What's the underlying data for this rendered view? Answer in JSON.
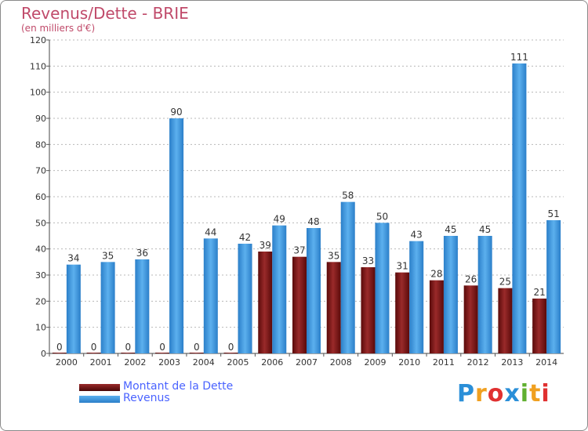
{
  "colors": {
    "dette": "#7a1010",
    "revenus": "#3c9ae0",
    "title": "#c04a6a",
    "legend_text": "#4a63ff"
  },
  "chart_data": {
    "type": "bar",
    "title": "Revenus/Dette - BRIE",
    "subtitle": "(en milliers d'€)",
    "xlabel": "",
    "ylabel": "",
    "ylim": [
      0,
      120
    ],
    "yticks": [
      0,
      10,
      20,
      30,
      40,
      50,
      60,
      70,
      80,
      90,
      100,
      110,
      120
    ],
    "grid": "horizontal dashed",
    "legend_position": "bottom-left",
    "categories": [
      "2000",
      "2001",
      "2002",
      "2003",
      "2004",
      "2005",
      "2006",
      "2007",
      "2008",
      "2009",
      "2010",
      "2011",
      "2012",
      "2013",
      "2014"
    ],
    "series": [
      {
        "name": "Montant de la Dette",
        "values": [
          0,
          0,
          0,
          0,
          0,
          0,
          39,
          37,
          35,
          33,
          31,
          28,
          26,
          25,
          21
        ]
      },
      {
        "name": "Revenus",
        "values": [
          34,
          35,
          36,
          90,
          44,
          42,
          49,
          48,
          58,
          50,
          43,
          45,
          45,
          111,
          51
        ]
      }
    ]
  },
  "logo": {
    "text": "Proxiti",
    "letters": [
      {
        "ch": "P",
        "color": "#2a8fd8"
      },
      {
        "ch": "r",
        "color": "#f0a020"
      },
      {
        "ch": "o",
        "color": "#e03030"
      },
      {
        "ch": "x",
        "color": "#2a8fd8"
      },
      {
        "ch": "i",
        "color": "#60b030"
      },
      {
        "ch": "t",
        "color": "#f0a020"
      },
      {
        "ch": "i",
        "color": "#e03030"
      }
    ]
  }
}
